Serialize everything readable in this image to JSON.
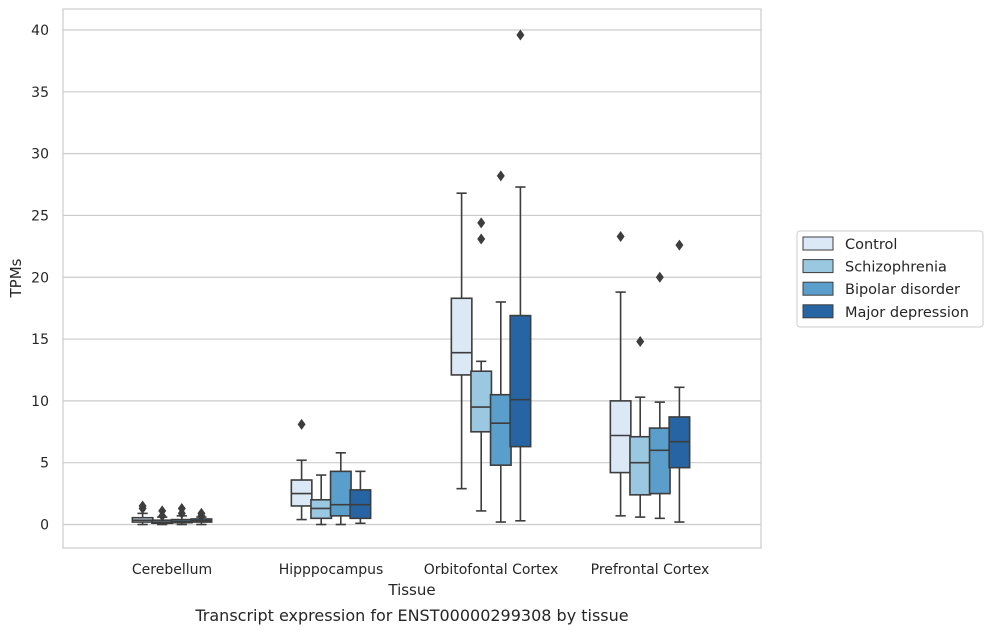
{
  "chart_data": {
    "type": "box",
    "xlabel": "Tissue",
    "ylabel": "TPMs",
    "caption": "Transcript expression for ENST00000299308 by tissue",
    "categories": [
      "Cerebellum",
      "Hipppocampus",
      "Orbitofontal Cortex",
      "Prefrontal Cortex"
    ],
    "yticks": [
      0,
      5,
      10,
      15,
      20,
      25,
      30,
      35,
      40
    ],
    "ylim": [
      -1.9,
      41.7
    ],
    "grid": true,
    "legend_position": "right",
    "series": [
      {
        "name": "Control",
        "color": "#dbe9f6",
        "boxes": [
          {
            "whislo": 0.0,
            "q1": 0.2,
            "med": 0.35,
            "q3": 0.55,
            "whishi": 0.9,
            "fliers": [
              1.3,
              1.5
            ]
          },
          {
            "whislo": 0.4,
            "q1": 1.5,
            "med": 2.5,
            "q3": 3.6,
            "whishi": 5.2,
            "fliers": [
              8.1
            ]
          },
          {
            "whislo": 2.9,
            "q1": 12.1,
            "med": 13.9,
            "q3": 18.3,
            "whishi": 26.8,
            "fliers": []
          },
          {
            "whislo": 0.7,
            "q1": 4.2,
            "med": 7.2,
            "q3": 10.0,
            "whishi": 18.8,
            "fliers": [
              23.3
            ]
          }
        ]
      },
      {
        "name": "Schizophrenia",
        "color": "#9ac8e0",
        "boxes": [
          {
            "whislo": 0.0,
            "q1": 0.1,
            "med": 0.2,
            "q3": 0.35,
            "whishi": 0.6,
            "fliers": [
              0.7,
              1.1
            ]
          },
          {
            "whislo": 0.0,
            "q1": 0.5,
            "med": 1.3,
            "q3": 2.0,
            "whishi": 4.0,
            "fliers": []
          },
          {
            "whislo": 1.1,
            "q1": 7.5,
            "med": 9.5,
            "q3": 12.4,
            "whishi": 13.2,
            "fliers": [
              23.1,
              24.4
            ]
          },
          {
            "whislo": 0.6,
            "q1": 2.4,
            "med": 5.0,
            "q3": 7.1,
            "whishi": 10.3,
            "fliers": [
              14.8
            ]
          }
        ]
      },
      {
        "name": "Bipolar disorder",
        "color": "#5a9ecc",
        "boxes": [
          {
            "whislo": 0.0,
            "q1": 0.15,
            "med": 0.25,
            "q3": 0.4,
            "whishi": 0.7,
            "fliers": [
              0.9,
              1.3
            ]
          },
          {
            "whislo": 0.0,
            "q1": 0.7,
            "med": 1.6,
            "q3": 4.3,
            "whishi": 5.8,
            "fliers": []
          },
          {
            "whislo": 0.2,
            "q1": 4.8,
            "med": 8.2,
            "q3": 10.5,
            "whishi": 18.0,
            "fliers": [
              28.2
            ]
          },
          {
            "whislo": 0.5,
            "q1": 2.5,
            "med": 6.0,
            "q3": 7.8,
            "whishi": 9.9,
            "fliers": [
              20.0
            ]
          }
        ]
      },
      {
        "name": "Major depression",
        "color": "#2664a4",
        "boxes": [
          {
            "whislo": 0.0,
            "q1": 0.2,
            "med": 0.3,
            "q3": 0.45,
            "whishi": 0.6,
            "fliers": [
              0.7,
              0.9
            ]
          },
          {
            "whislo": 0.1,
            "q1": 0.5,
            "med": 1.6,
            "q3": 2.8,
            "whishi": 4.3,
            "fliers": []
          },
          {
            "whislo": 0.3,
            "q1": 6.3,
            "med": 10.1,
            "q3": 16.9,
            "whishi": 27.3,
            "fliers": [
              39.6
            ]
          },
          {
            "whislo": 0.2,
            "q1": 4.6,
            "med": 6.7,
            "q3": 8.7,
            "whishi": 11.1,
            "fliers": [
              22.6
            ]
          }
        ]
      }
    ]
  }
}
